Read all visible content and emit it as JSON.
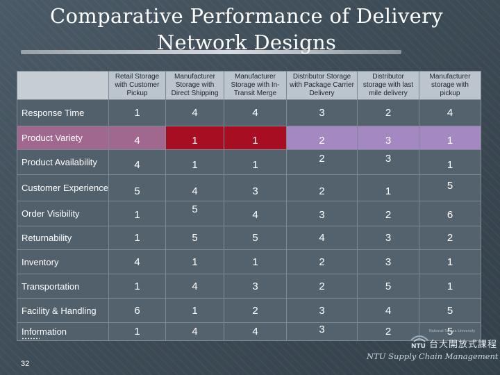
{
  "slide": {
    "title_line1": "Comparative Performance of Delivery",
    "title_line2": "Network Designs",
    "page_number": "32",
    "footer_text": "NTU Supply Chain Management",
    "logo_text_cn": "台大開放式課程",
    "logo_university": "National Taiwan University",
    "logo_acronym": "NTU"
  },
  "table": {
    "columns": [
      [
        "Retail Storage",
        "with Customer",
        "Pickup"
      ],
      [
        "Manufacturer",
        "Storage with",
        "Direct Shipping"
      ],
      [
        "Manufacturer",
        "Storage with In-",
        "Transit Merge"
      ],
      [
        "Distributor Storage",
        "with Package Carrier",
        "Delivery"
      ],
      [
        "Distributor",
        "storage with last",
        "mile delivery"
      ],
      [
        "Manufacturer",
        "storage with",
        "pickup"
      ]
    ],
    "rows": [
      {
        "label": "Response Time",
        "values": [
          "1",
          "4",
          "4",
          "3",
          "2",
          "4"
        ]
      },
      {
        "label": "Product Variety",
        "values": [
          "4",
          "1",
          "1",
          "2",
          "3",
          "1"
        ]
      },
      {
        "label": "Product Availability",
        "values": [
          "4",
          "1",
          "1",
          "2",
          "3",
          "1"
        ]
      },
      {
        "label": "Customer Experience",
        "values": [
          "5",
          "4",
          "3",
          "2",
          "1",
          "5"
        ]
      },
      {
        "label": "Order Visibility",
        "values": [
          "1",
          "5",
          "4",
          "3",
          "2",
          "6"
        ]
      },
      {
        "label": "Returnability",
        "values": [
          "1",
          "5",
          "5",
          "4",
          "3",
          "2"
        ]
      },
      {
        "label": "Inventory",
        "values": [
          "4",
          "1",
          "1",
          "2",
          "3",
          "1"
        ]
      },
      {
        "label": "Transportation",
        "values": [
          "1",
          "4",
          "3",
          "2",
          "5",
          "1"
        ]
      },
      {
        "label": "Facility & Handling",
        "values": [
          "6",
          "1",
          "2",
          "3",
          "4",
          "5"
        ]
      },
      {
        "label": "Information",
        "values": [
          "1",
          "4",
          "4",
          "3",
          "2",
          "5"
        ]
      }
    ]
  },
  "colors": {
    "header_bg": "#bcc5cd",
    "cell_bg": "#54626d",
    "highlight_pink": "#a0688f",
    "highlight_red": "#a80e22",
    "highlight_lavender": "#a488c2"
  }
}
